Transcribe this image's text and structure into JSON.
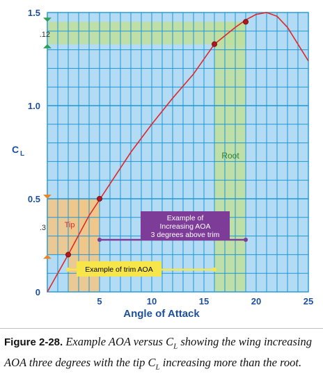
{
  "chart_data": {
    "type": "line",
    "xlabel": "Angle of Attack",
    "ylabel": "C",
    "ylabel_sub": "L",
    "xlim": [
      0,
      25
    ],
    "ylim": [
      0,
      1.5
    ],
    "x_ticks": [
      {
        "value": 5,
        "label": "5"
      },
      {
        "value": 10,
        "label": "10"
      },
      {
        "value": 15,
        "label": "15"
      },
      {
        "value": 20,
        "label": "20"
      },
      {
        "value": 25,
        "label": "25"
      }
    ],
    "y_ticks": [
      {
        "value": 0,
        "label": "0"
      },
      {
        "value": 0.5,
        "label": "0.5"
      },
      {
        "value": 1.0,
        "label": "1.0"
      },
      {
        "value": 1.5,
        "label": "1.5"
      }
    ],
    "grid": true,
    "series": [
      {
        "color": "#e0262b",
        "x": [
          0,
          2,
          4,
          6,
          8,
          10,
          12,
          14,
          16,
          18,
          19,
          20,
          21,
          22,
          23,
          24,
          25
        ],
        "y": [
          0,
          0.2,
          0.41,
          0.58,
          0.75,
          0.9,
          1.04,
          1.17,
          1.33,
          1.42,
          1.46,
          1.49,
          1.5,
          1.48,
          1.42,
          1.33,
          1.24
        ]
      }
    ],
    "highlight_points": [
      {
        "x": 2,
        "y": 0.2
      },
      {
        "x": 5,
        "y": 0.5
      },
      {
        "x": 16,
        "y": 1.33
      },
      {
        "x": 19,
        "y": 1.45
      }
    ],
    "annotations": {
      "tip_label": "Tip",
      "root_label": "Root",
      "tip_delta": ".3",
      "root_delta": ".12",
      "tip_band": {
        "x": [
          2,
          5
        ],
        "y": [
          0.2,
          0.5
        ]
      },
      "root_band": {
        "x": [
          16,
          19
        ],
        "y": [
          1.33,
          1.45
        ]
      },
      "trim_label": "Example of trim AOA",
      "trim_arrow": {
        "x1": 2,
        "x2": 16,
        "y": 0.12
      },
      "increase_label": [
        "Example of",
        "Increasing AOA",
        "3 degrees above trim"
      ],
      "increase_arrow": {
        "x1": 5,
        "x2": 19,
        "y": 0.28
      }
    },
    "colors": {
      "plot_bg": "#b3dcf4",
      "grid": "#1e96d6",
      "curve": "#e0262b",
      "point": "#b0181e",
      "tip_band": "#f1c68a",
      "root_band": "#bfdf9e",
      "tip_text": "#e0262b",
      "root_text": "#2f7d32",
      "purple": "#7e3c99",
      "yellow": "#f7e64a",
      "axis_text": "#1d4f9c",
      "tick_orange": "#e8872a",
      "tick_green": "#2e9e58"
    }
  },
  "caption": {
    "label": "Figure 2-28.",
    "text_a": "Example AOA versus C",
    "sub_a": "L",
    "text_b": "showing the wing increasing AOA three degrees with the tip C",
    "sub_b": "L",
    "text_c": "increasing more than the root."
  }
}
